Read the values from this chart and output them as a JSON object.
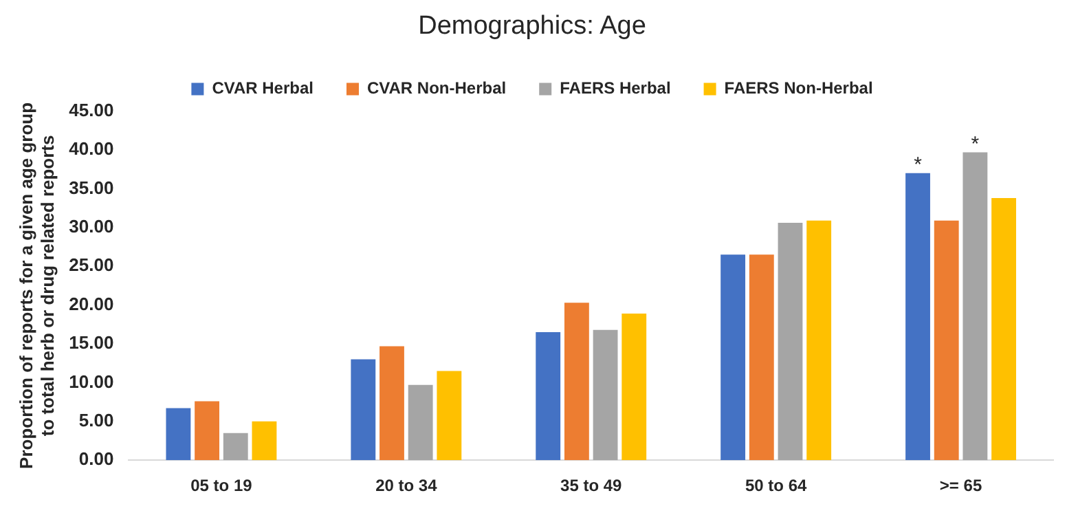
{
  "chart_data": {
    "type": "bar",
    "title": "Demographics: Age",
    "ylabel": "Proportion of reports for a given age group\nto total herb or drug related reports",
    "categories": [
      "05 to 19",
      "20 to 34",
      "35 to 49",
      "50 to 64",
      ">= 65"
    ],
    "series": [
      {
        "name": "CVAR Herbal",
        "color": "#4472c4",
        "values": [
          6.7,
          13.0,
          16.5,
          26.5,
          37.0
        ]
      },
      {
        "name": "CVAR Non-Herbal",
        "color": "#ed7d31",
        "values": [
          7.6,
          14.7,
          20.3,
          26.5,
          30.9
        ]
      },
      {
        "name": "FAERS Herbal",
        "color": "#a5a5a5",
        "values": [
          3.5,
          9.7,
          16.8,
          30.6,
          39.7
        ]
      },
      {
        "name": "FAERS Non-Herbal",
        "color": "#ffc000",
        "values": [
          5.0,
          11.5,
          18.9,
          30.9,
          33.8
        ]
      }
    ],
    "ylim": [
      0,
      45
    ],
    "yticks": [
      {
        "value": 0,
        "label": "0.00"
      },
      {
        "value": 5,
        "label": "5.00"
      },
      {
        "value": 10,
        "label": "10.00"
      },
      {
        "value": 15,
        "label": "15.00"
      },
      {
        "value": 20,
        "label": "20.00"
      },
      {
        "value": 25,
        "label": "25.00"
      },
      {
        "value": 30,
        "label": "30.00"
      },
      {
        "value": 35,
        "label": "35.00"
      },
      {
        "value": 40,
        "label": "40.00"
      },
      {
        "value": 45,
        "label": "45.00"
      }
    ],
    "annotations": [
      {
        "text": "*",
        "x": ">= 65",
        "y": 37.0
      },
      {
        "text": "*",
        "x": ">= 65",
        "y": 39.7
      }
    ],
    "grid": false,
    "legend": "top"
  }
}
